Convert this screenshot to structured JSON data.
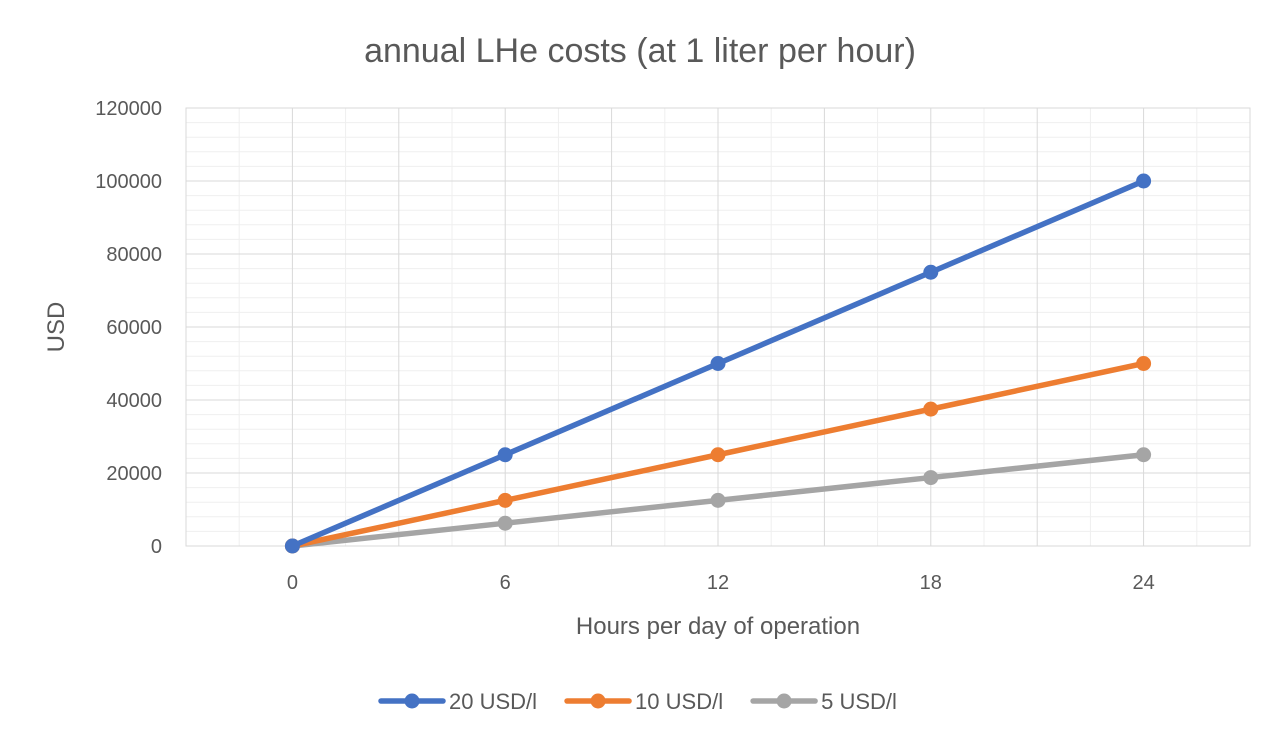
{
  "chart_data": {
    "type": "line",
    "title": "annual LHe costs (at 1 liter per hour)",
    "xlabel": "Hours per day of operation",
    "ylabel": "USD",
    "x": [
      0,
      6,
      12,
      18,
      24
    ],
    "x_ticks": [
      "0",
      "6",
      "12",
      "18",
      "24"
    ],
    "xlim": [
      -3,
      27
    ],
    "y_ticks": [
      "0",
      "20000",
      "40000",
      "60000",
      "80000",
      "100000",
      "120000"
    ],
    "ylim": [
      0,
      120000
    ],
    "grid": true,
    "legend_position": "bottom",
    "series": [
      {
        "name": "20 USD/l",
        "color": "#4472C4",
        "values": [
          0,
          25000,
          50000,
          75000,
          100000
        ]
      },
      {
        "name": "10 USD/l",
        "color": "#ED7D31",
        "values": [
          0,
          12500,
          25000,
          37500,
          50000
        ]
      },
      {
        "name": "5 USD/l",
        "color": "#A5A5A5",
        "values": [
          0,
          6250,
          12500,
          18750,
          25000
        ]
      }
    ]
  }
}
